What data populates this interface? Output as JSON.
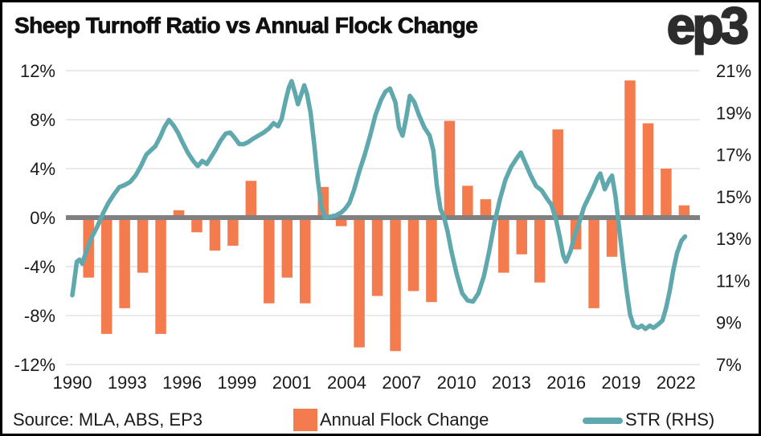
{
  "title": "Sheep Turnoff Ratio vs Annual Flock Change",
  "logo": {
    "text": "ep3"
  },
  "footer": {
    "source": "Source: MLA, ABS, EP3"
  },
  "legend": {
    "bar": {
      "label": "Annual Flock Change",
      "color": "#F47B4E"
    },
    "line": {
      "label": "STR (RHS)",
      "color": "#5FA8AD"
    }
  },
  "colors": {
    "bar": "#F47B4E",
    "line": "#5FA8AD",
    "zero_line": "#808080",
    "gridline": "#EAEAEA",
    "text": "#1a1a1a"
  },
  "chart_data": {
    "type": "combo-bar-line",
    "title": "Sheep Turnoff Ratio vs Annual Flock Change",
    "grid": true,
    "legend_position": "bottom",
    "left_axis": {
      "tick_labels": [
        "12%",
        "8%",
        "4%",
        "0%",
        "-4%",
        "-8%",
        "-12%"
      ],
      "tick_values": [
        12,
        8,
        4,
        0,
        -4,
        -8,
        -12
      ],
      "range": [
        -12,
        12
      ]
    },
    "right_axis": {
      "tick_labels": [
        "21%",
        "19%",
        "17%",
        "15%",
        "13%",
        "11%",
        "9%",
        "7%"
      ],
      "tick_values": [
        21,
        19,
        17,
        15,
        13,
        11,
        9,
        7
      ],
      "range": [
        7,
        21
      ]
    },
    "x_axis": {
      "tick_labels": [
        "1990",
        "1993",
        "1996",
        "1999",
        "2001",
        "2004",
        "2007",
        "2010",
        "2013",
        "2016",
        "2019",
        "2022"
      ]
    },
    "series": [
      {
        "name": "Annual Flock Change",
        "type": "bar",
        "axis": "left",
        "unit": "%",
        "years": [
          1991,
          1992,
          1993,
          1994,
          1995,
          1996,
          1997,
          1998,
          1999,
          2000,
          2001,
          2002,
          2003,
          2004,
          2005,
          2006,
          2007,
          2008,
          2009,
          2010,
          2011,
          2012,
          2013,
          2014,
          2015,
          2016,
          2017,
          2018,
          2019,
          2020,
          2021,
          2022,
          2023,
          2024
        ],
        "values": [
          -4.9,
          -9.5,
          -7.4,
          -4.5,
          -9.5,
          0.6,
          -1.2,
          -2.7,
          -2.3,
          3.0,
          -7.0,
          -4.9,
          -7.0,
          2.5,
          -0.7,
          -10.6,
          -6.4,
          -10.9,
          -6.0,
          -6.9,
          7.9,
          2.6,
          1.5,
          -4.5,
          -3.0,
          -5.3,
          7.2,
          -2.6,
          -7.4,
          -3.2,
          11.2,
          7.7,
          4.0,
          1.0
        ]
      },
      {
        "name": "STR (RHS)",
        "type": "line",
        "axis": "right",
        "unit": "%",
        "points": [
          [
            1990.0,
            10.3
          ],
          [
            1990.1,
            10.9
          ],
          [
            1990.25,
            11.9
          ],
          [
            1990.4,
            12.0
          ],
          [
            1990.55,
            11.8
          ],
          [
            1990.7,
            12.2
          ],
          [
            1990.9,
            12.7
          ],
          [
            1991.1,
            13.1
          ],
          [
            1991.4,
            13.6
          ],
          [
            1991.7,
            14.2
          ],
          [
            1992.0,
            14.7
          ],
          [
            1992.3,
            15.1
          ],
          [
            1992.6,
            15.45
          ],
          [
            1992.9,
            15.55
          ],
          [
            1993.2,
            15.7
          ],
          [
            1993.5,
            16.0
          ],
          [
            1993.8,
            16.45
          ],
          [
            1994.1,
            17.0
          ],
          [
            1994.35,
            17.2
          ],
          [
            1994.6,
            17.4
          ],
          [
            1994.9,
            17.9
          ],
          [
            1995.1,
            18.3
          ],
          [
            1995.35,
            18.65
          ],
          [
            1995.6,
            18.4
          ],
          [
            1995.85,
            18.05
          ],
          [
            1996.1,
            17.6
          ],
          [
            1996.4,
            17.1
          ],
          [
            1996.7,
            16.7
          ],
          [
            1996.95,
            16.45
          ],
          [
            1997.2,
            16.7
          ],
          [
            1997.45,
            16.55
          ],
          [
            1997.7,
            16.9
          ],
          [
            1997.95,
            17.25
          ],
          [
            1998.2,
            17.65
          ],
          [
            1998.5,
            18.0
          ],
          [
            1998.75,
            18.05
          ],
          [
            1999.0,
            17.8
          ],
          [
            1999.25,
            17.5
          ],
          [
            1999.5,
            17.5
          ],
          [
            1999.75,
            17.6
          ],
          [
            2000.0,
            17.75
          ],
          [
            2000.3,
            17.9
          ],
          [
            2000.6,
            18.05
          ],
          [
            2000.9,
            18.25
          ],
          [
            2001.15,
            18.5
          ],
          [
            2001.4,
            18.35
          ],
          [
            2001.6,
            18.7
          ],
          [
            2001.8,
            19.5
          ],
          [
            2002.0,
            20.2
          ],
          [
            2002.15,
            20.5
          ],
          [
            2002.35,
            19.9
          ],
          [
            2002.5,
            19.4
          ],
          [
            2002.7,
            19.9
          ],
          [
            2002.85,
            20.3
          ],
          [
            2003.0,
            19.9
          ],
          [
            2003.2,
            19.0
          ],
          [
            2003.4,
            17.5
          ],
          [
            2003.6,
            15.8
          ],
          [
            2003.8,
            14.5
          ],
          [
            2004.0,
            14.0
          ],
          [
            2004.3,
            14.05
          ],
          [
            2004.6,
            14.1
          ],
          [
            2004.9,
            14.25
          ],
          [
            2005.1,
            14.4
          ],
          [
            2005.35,
            14.7
          ],
          [
            2005.6,
            15.3
          ],
          [
            2005.9,
            16.2
          ],
          [
            2006.2,
            17.0
          ],
          [
            2006.5,
            17.9
          ],
          [
            2006.8,
            18.9
          ],
          [
            2007.1,
            19.6
          ],
          [
            2007.35,
            20.0
          ],
          [
            2007.6,
            20.15
          ],
          [
            2007.9,
            19.5
          ],
          [
            2008.1,
            18.3
          ],
          [
            2008.3,
            17.9
          ],
          [
            2008.5,
            18.75
          ],
          [
            2008.7,
            19.8
          ],
          [
            2008.95,
            19.5
          ],
          [
            2009.2,
            18.9
          ],
          [
            2009.5,
            18.3
          ],
          [
            2009.8,
            17.9
          ],
          [
            2010.0,
            17.2
          ],
          [
            2010.2,
            15.5
          ],
          [
            2010.4,
            14.4
          ],
          [
            2010.6,
            14.0
          ],
          [
            2010.8,
            13.3
          ],
          [
            2011.0,
            12.4
          ],
          [
            2011.3,
            11.3
          ],
          [
            2011.6,
            10.4
          ],
          [
            2011.9,
            10.05
          ],
          [
            2012.2,
            10.0
          ],
          [
            2012.5,
            10.4
          ],
          [
            2012.8,
            11.2
          ],
          [
            2013.1,
            12.4
          ],
          [
            2013.4,
            13.8
          ],
          [
            2013.7,
            14.9
          ],
          [
            2014.0,
            15.8
          ],
          [
            2014.3,
            16.4
          ],
          [
            2014.6,
            16.8
          ],
          [
            2014.85,
            17.1
          ],
          [
            2015.1,
            16.6
          ],
          [
            2015.4,
            16.0
          ],
          [
            2015.7,
            15.5
          ],
          [
            2016.0,
            15.3
          ],
          [
            2016.3,
            14.9
          ],
          [
            2016.55,
            14.6
          ],
          [
            2016.8,
            13.9
          ],
          [
            2017.0,
            13.1
          ],
          [
            2017.2,
            12.2
          ],
          [
            2017.35,
            11.9
          ],
          [
            2017.6,
            12.4
          ],
          [
            2017.85,
            13.2
          ],
          [
            2018.1,
            13.8
          ],
          [
            2018.35,
            14.5
          ],
          [
            2018.6,
            14.95
          ],
          [
            2018.85,
            15.4
          ],
          [
            2019.1,
            15.9
          ],
          [
            2019.25,
            16.1
          ],
          [
            2019.5,
            15.35
          ],
          [
            2019.75,
            15.8
          ],
          [
            2019.9,
            16.0
          ],
          [
            2020.1,
            15.0
          ],
          [
            2020.3,
            13.5
          ],
          [
            2020.5,
            12.0
          ],
          [
            2020.7,
            10.6
          ],
          [
            2020.9,
            9.4
          ],
          [
            2021.1,
            8.85
          ],
          [
            2021.35,
            8.75
          ],
          [
            2021.55,
            8.85
          ],
          [
            2021.75,
            8.7
          ],
          [
            2022.0,
            8.85
          ],
          [
            2022.2,
            8.75
          ],
          [
            2022.45,
            8.9
          ],
          [
            2022.7,
            9.1
          ],
          [
            2022.9,
            9.7
          ],
          [
            2023.1,
            10.5
          ],
          [
            2023.3,
            11.5
          ],
          [
            2023.5,
            12.3
          ],
          [
            2023.75,
            12.9
          ],
          [
            2023.95,
            13.1
          ]
        ]
      }
    ]
  }
}
